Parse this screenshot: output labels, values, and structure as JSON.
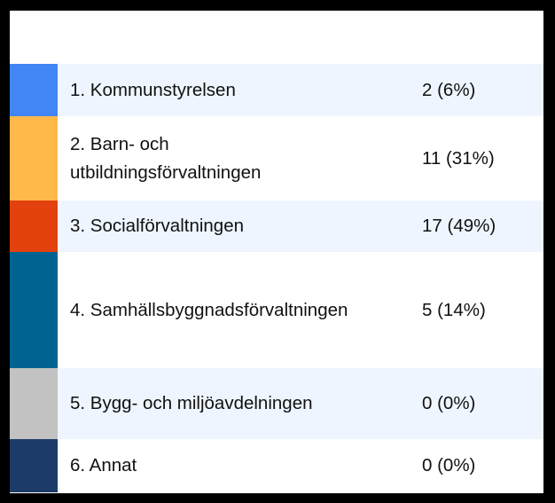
{
  "chart_data": {
    "type": "table",
    "rows": [
      {
        "label": "1. Kommunstyrelsen",
        "count": 2,
        "percent": 6,
        "value_text": "2 (6%)",
        "color": "#4285f4"
      },
      {
        "label": "2. Barn- och utbildningsförvaltningen",
        "count": 11,
        "percent": 31,
        "value_text": "11 (31%)",
        "color": "#ffb84a"
      },
      {
        "label": "3. Socialförvaltningen",
        "count": 17,
        "percent": 49,
        "value_text": "17 (49%)",
        "color": "#e3410e"
      },
      {
        "label": "4. Samhällsbyggnadsförvaltningen",
        "count": 5,
        "percent": 14,
        "value_text": "5 (14%)",
        "color": "#006392"
      },
      {
        "label": "5. Bygg- och miljöavdelningen",
        "count": 0,
        "percent": 0,
        "value_text": "0 (0%)",
        "color": "#c2c2c2"
      },
      {
        "label": "6. Annat",
        "count": 0,
        "percent": 0,
        "value_text": "0 (0%)",
        "color": "#1c3b68"
      }
    ],
    "row_stripe_color": "#eef5fe"
  }
}
